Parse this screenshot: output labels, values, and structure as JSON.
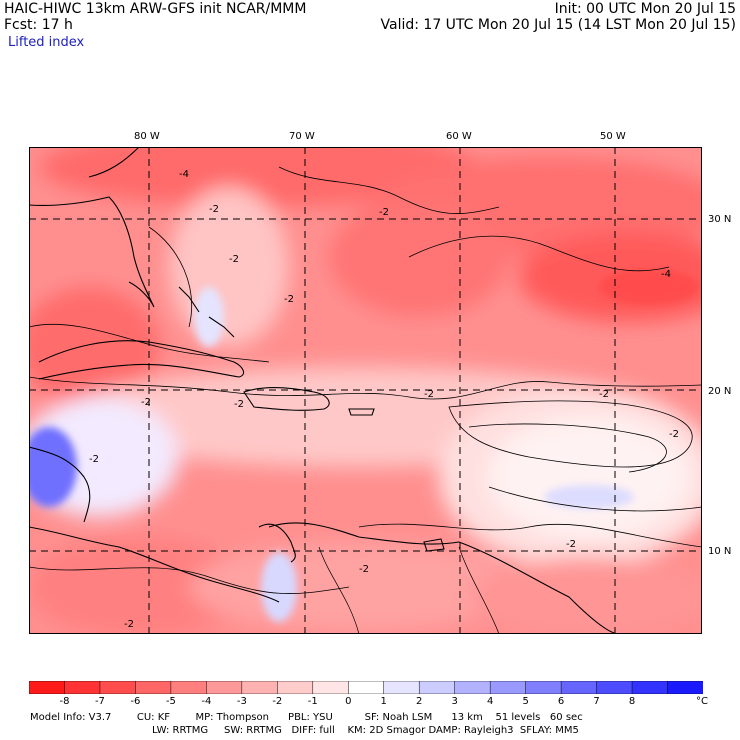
{
  "header": {
    "line1_left": "HAIC-HIWC 13km ARW-GFS init    NCAR/MMM",
    "line1_right": "Init: 00 UTC Mon 20 Jul 15",
    "line2_left": "Fcst:    17 h",
    "line2_right": "Valid: 17 UTC Mon 20 Jul 15 (14 LST Mon 20 Jul 15)",
    "field": "Lifted index"
  },
  "lon_labels": [
    "80 W",
    "70 W",
    "60 W",
    "50 W"
  ],
  "lat_labels": [
    "30 N",
    "20 N",
    "10 N"
  ],
  "colorbar": {
    "labels": [
      "-8",
      "-7",
      "-6",
      "-5",
      "-4",
      "-3",
      "-2",
      "-1",
      "0",
      "1",
      "2",
      "3",
      "4",
      "5",
      "6",
      "7",
      "8"
    ],
    "unit": "°C",
    "colors": [
      "#ff1a1a",
      "#ff3333",
      "#ff4d4d",
      "#ff6666",
      "#ff7f7f",
      "#ff9999",
      "#ffb2b2",
      "#ffcccc",
      "#ffe5e5",
      "#ffffff",
      "#e5e5ff",
      "#ccccff",
      "#b2b2ff",
      "#9999ff",
      "#7f7fff",
      "#6666ff",
      "#4d4dff",
      "#3333ff",
      "#1a1aff"
    ]
  },
  "model_info": {
    "line1": "Model Info: V3.7        CU: KF        MP: Thompson      PBL: YSU          SF: Noah LSM      13 km    51 levels   60 sec",
    "line2": "LW: RRTMG     SW: RRTMG   DIFF: full    KM: 2D Smagor DAMP: Rayleigh3  SFLAY: MM5"
  },
  "contour_labels": [
    "-2",
    "-2",
    "-4",
    "-2",
    "-2",
    "-2",
    "-2",
    "-2",
    "-2",
    "-2",
    "-2",
    "-4",
    "-2",
    "-2",
    "-2"
  ]
}
